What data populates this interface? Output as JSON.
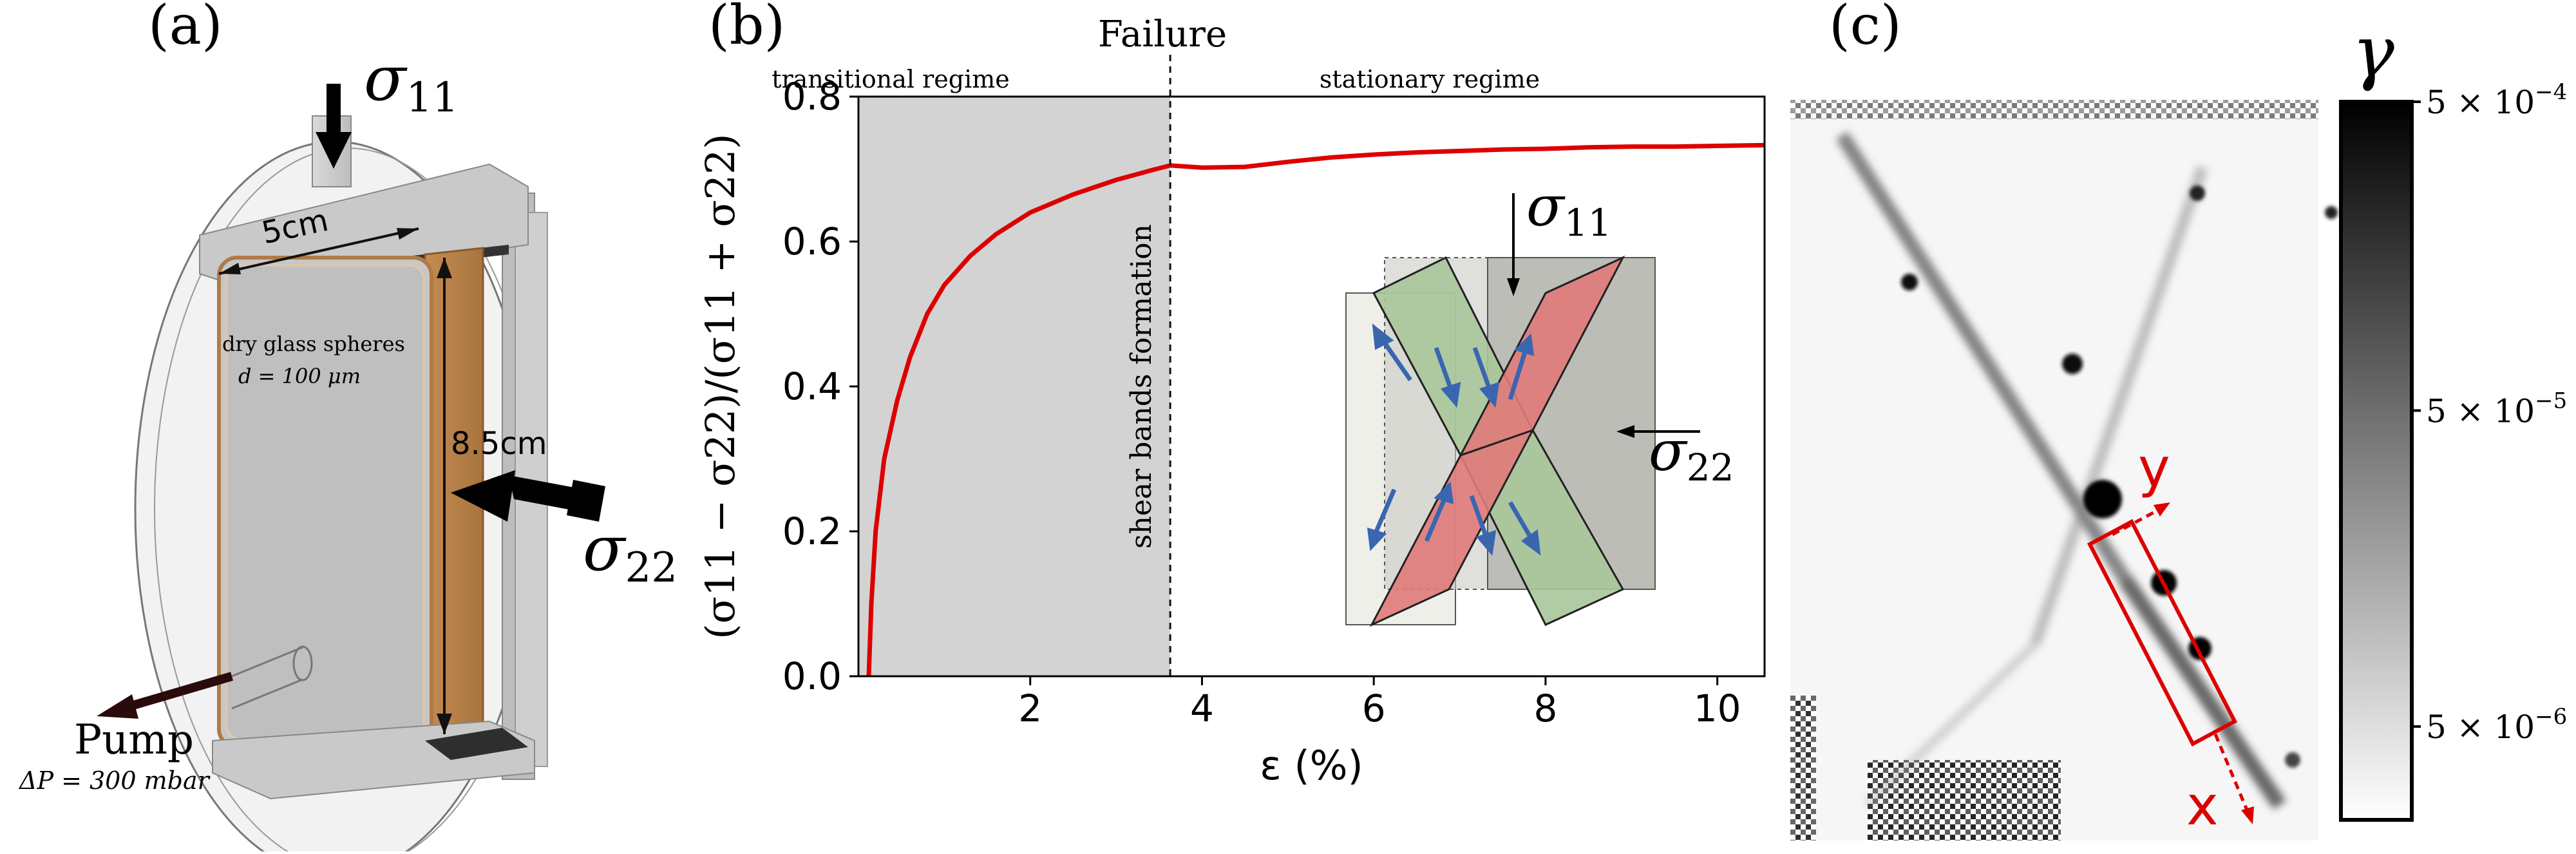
{
  "panel_a": {
    "label": "(a)",
    "sigma11": "σ",
    "sigma11_sub": "11",
    "sigma22": "σ",
    "sigma22_sub": "22",
    "width_label": "5cm",
    "height_label": "8.5cm",
    "material_line1": "dry glass spheres",
    "material_line2": "d = 100 μm",
    "pump_label": "Pump",
    "pressure_label": "ΔP = 300 mbar"
  },
  "panel_b": {
    "label": "(b)",
    "failure_label": "Failure",
    "regime_left": "transitional regime",
    "regime_right": "stationary regime",
    "vertical_note": "shear bands formation",
    "inset_sigma11": "σ",
    "inset_sigma11_sub": "11",
    "inset_sigma22": "σ",
    "inset_sigma22_sub": "22",
    "colors": {
      "curve": "#dd0000",
      "shade": "#d3d3d3",
      "arrow": "#3a66b0",
      "band_red": "#e07a7a",
      "band_green": "#a9c79a"
    }
  },
  "chart_data": {
    "type": "line",
    "title": "",
    "xlabel": "ε (%)",
    "ylabel": "(σ11 − σ22)/(σ11 + σ22)",
    "xlim": [
      0,
      10.55
    ],
    "ylim": [
      0,
      0.8
    ],
    "xticks": [
      "2",
      "4",
      "6",
      "8",
      "10"
    ],
    "yticks": [
      "0.0",
      "0.2",
      "0.4",
      "0.6",
      "0.8"
    ],
    "failure_x": 3.63,
    "series": [
      {
        "name": "",
        "x": [
          0.12,
          0.15,
          0.2,
          0.3,
          0.45,
          0.6,
          0.8,
          1.0,
          1.3,
          1.6,
          2.0,
          2.5,
          3.0,
          3.4,
          3.63,
          4.0,
          4.5,
          5.0,
          5.5,
          6.0,
          6.5,
          7.0,
          7.5,
          8.0,
          8.5,
          9.0,
          9.5,
          10.0,
          10.55
        ],
        "y": [
          0.0,
          0.1,
          0.2,
          0.3,
          0.38,
          0.44,
          0.5,
          0.54,
          0.58,
          0.61,
          0.64,
          0.665,
          0.685,
          0.698,
          0.705,
          0.702,
          0.703,
          0.71,
          0.716,
          0.72,
          0.723,
          0.725,
          0.727,
          0.728,
          0.73,
          0.731,
          0.731,
          0.732,
          0.733
        ]
      }
    ]
  },
  "panel_c": {
    "label": "(c)",
    "colorbar_title": "γ",
    "colorbar_ticks": [
      {
        "mant": "5 × 10",
        "exp": "−4",
        "level": 1.0
      },
      {
        "mant": "5 × 10",
        "exp": "−5",
        "level": 0.57
      },
      {
        "mant": "5 × 10",
        "exp": "−6",
        "level": 0.13
      }
    ],
    "axis_y": "y",
    "axis_x": "x",
    "colors": {
      "highlight": "#dd0000"
    }
  }
}
